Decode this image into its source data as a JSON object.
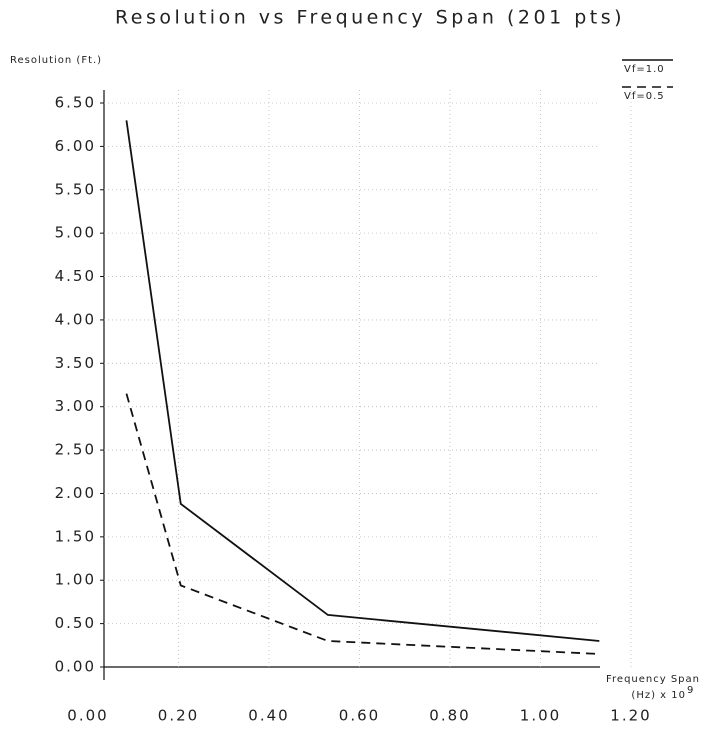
{
  "chart_data": {
    "type": "line",
    "title": "Resolution vs Frequency Span (201 pts)",
    "y_label": "Resolution (Ft.)",
    "x_label": "Frequency Span",
    "x_unit": "(Hz) x 10",
    "x_unit_exponent": "9",
    "x": [
      0.085,
      0.205,
      0.53,
      1.13
    ],
    "series": [
      {
        "name": "Vf=1.0",
        "color": "#111111",
        "dash": "solid",
        "values": [
          6.3,
          1.88,
          0.6,
          0.3
        ]
      },
      {
        "name": "Vf=0.5",
        "color": "#111111",
        "dash": "dashed",
        "values": [
          3.15,
          0.94,
          0.3,
          0.15
        ]
      }
    ],
    "xlim": [
      0,
      1.35
    ],
    "xticks": [
      {
        "value": 0,
        "label": "0.00"
      },
      {
        "value": 0.2,
        "label": "0.20"
      },
      {
        "value": 0.4,
        "label": "0.40"
      },
      {
        "value": 0.6,
        "label": "0.60"
      },
      {
        "value": 0.8,
        "label": "0.80"
      },
      {
        "value": 1.0,
        "label": "1.00"
      },
      {
        "value": 1.2,
        "label": "1.20"
      }
    ],
    "ylim": [
      0,
      6.5
    ],
    "yticks": [
      {
        "value": 0,
        "label": "0.00"
      },
      {
        "value": 0.5,
        "label": "0.50"
      },
      {
        "value": 1.0,
        "label": "1.00"
      },
      {
        "value": 1.5,
        "label": "1.50"
      },
      {
        "value": 2.0,
        "label": "2.00"
      },
      {
        "value": 2.5,
        "label": "2.50"
      },
      {
        "value": 3.0,
        "label": "3.00"
      },
      {
        "value": 3.5,
        "label": "3.50"
      },
      {
        "value": 4.0,
        "label": "4.00"
      },
      {
        "value": 4.5,
        "label": "4.50"
      },
      {
        "value": 5.0,
        "label": "5.00"
      },
      {
        "value": 5.5,
        "label": "5.50"
      },
      {
        "value": 6.0,
        "label": "6.00"
      },
      {
        "value": 6.5,
        "label": "6.50"
      }
    ],
    "grid": true,
    "legend": "top-right"
  }
}
